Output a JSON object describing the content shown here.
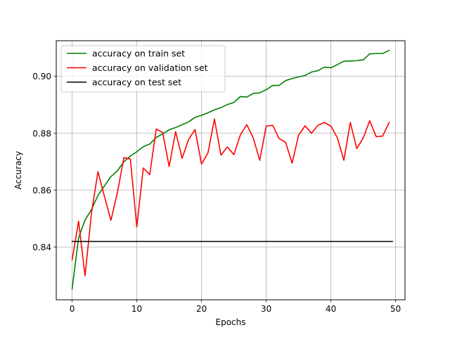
{
  "chart_data": {
    "type": "line",
    "title": "",
    "xlabel": "Epochs",
    "ylabel": "Accuracy",
    "xlim": [
      -2.45,
      51.45
    ],
    "ylim": [
      0.8215,
      0.9125
    ],
    "xticks": [
      0,
      10,
      20,
      30,
      40,
      50
    ],
    "yticks": [
      0.84,
      0.86,
      0.88,
      0.9
    ],
    "xtick_labels": [
      "0",
      "10",
      "20",
      "30",
      "40",
      "50"
    ],
    "ytick_labels": [
      "0.84",
      "0.86",
      "0.88",
      "0.90"
    ],
    "grid": true,
    "legend_position": "upper-left",
    "series": [
      {
        "name": "accuracy on train set",
        "color": "#008000",
        "x": [
          0,
          1,
          2,
          3,
          4,
          5,
          6,
          7,
          8,
          9,
          10,
          11,
          12,
          13,
          14,
          15,
          16,
          17,
          18,
          19,
          20,
          21,
          22,
          23,
          24,
          25,
          26,
          27,
          28,
          29,
          30,
          31,
          32,
          33,
          34,
          35,
          36,
          37,
          38,
          39,
          40,
          41,
          42,
          43,
          44,
          45,
          46,
          47,
          48,
          49
        ],
        "y": [
          0.8253,
          0.8433,
          0.8495,
          0.8532,
          0.8582,
          0.8615,
          0.8648,
          0.8668,
          0.87,
          0.872,
          0.8735,
          0.8753,
          0.8762,
          0.8785,
          0.8798,
          0.8812,
          0.882,
          0.883,
          0.884,
          0.8856,
          0.8863,
          0.8872,
          0.8882,
          0.889,
          0.8901,
          0.8908,
          0.8929,
          0.8927,
          0.894,
          0.8942,
          0.8953,
          0.8968,
          0.8968,
          0.8985,
          0.8992,
          0.8998,
          0.9003,
          0.9015,
          0.902,
          0.9032,
          0.903,
          0.9041,
          0.9053,
          0.9054,
          0.9055,
          0.9058,
          0.9079,
          0.908,
          0.908,
          0.9091
        ]
      },
      {
        "name": "accuracy on validation set",
        "color": "#ff0000",
        "x": [
          0,
          1,
          2,
          3,
          4,
          5,
          6,
          7,
          8,
          9,
          10,
          11,
          12,
          13,
          14,
          15,
          16,
          17,
          18,
          19,
          20,
          21,
          22,
          23,
          24,
          25,
          26,
          27,
          28,
          29,
          30,
          31,
          32,
          33,
          34,
          35,
          36,
          37,
          38,
          39,
          40,
          41,
          42,
          43,
          44,
          45,
          46,
          47,
          48,
          49
        ],
        "y": [
          0.8355,
          0.8491,
          0.8299,
          0.8521,
          0.8665,
          0.8578,
          0.8494,
          0.8591,
          0.8714,
          0.871,
          0.8471,
          0.8678,
          0.8655,
          0.8815,
          0.8802,
          0.8683,
          0.8806,
          0.8712,
          0.8778,
          0.8813,
          0.8692,
          0.8731,
          0.885,
          0.8723,
          0.8752,
          0.8725,
          0.8794,
          0.883,
          0.8783,
          0.8705,
          0.8825,
          0.8828,
          0.8781,
          0.8768,
          0.8695,
          0.8793,
          0.8826,
          0.88,
          0.8828,
          0.8838,
          0.8825,
          0.8784,
          0.8705,
          0.8838,
          0.8746,
          0.8784,
          0.8844,
          0.8788,
          0.879,
          0.8838
        ]
      },
      {
        "name": "accuracy on test set",
        "color": "#000000",
        "x": [
          0,
          49.5
        ],
        "y": [
          0.842,
          0.842
        ]
      }
    ]
  }
}
